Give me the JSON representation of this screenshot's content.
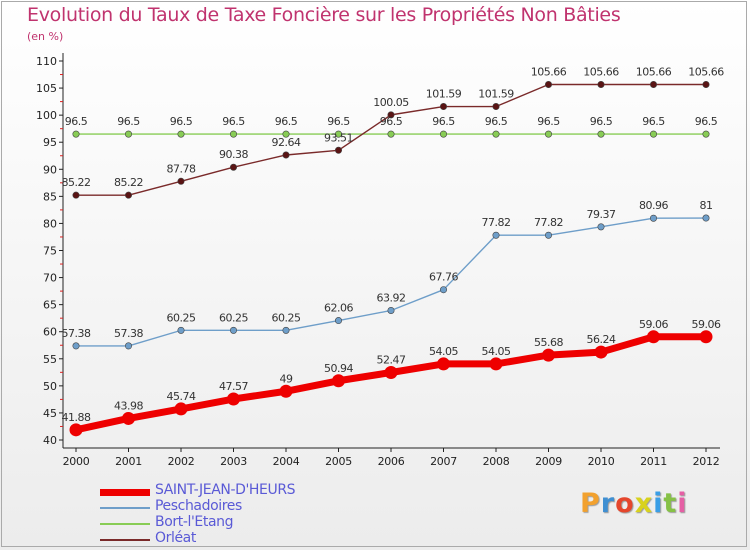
{
  "header": {
    "title": "Evolution du Taux de Taxe Foncière sur les Propriétés Non Bâties",
    "subtitle": "(en %)"
  },
  "logo": {
    "text": "Proxiti",
    "colors": [
      "#f2a12e",
      "#3f8fd2",
      "#e5462c",
      "#d8d21e",
      "#3a9ee6",
      "#86c146",
      "#e55fa4"
    ]
  },
  "chart_data": {
    "type": "line",
    "categories": [
      "2000",
      "2001",
      "2002",
      "2003",
      "2004",
      "2005",
      "2006",
      "2007",
      "2008",
      "2009",
      "2010",
      "2011",
      "2012"
    ],
    "ylim": [
      40,
      110
    ],
    "yticks": [
      40,
      45,
      50,
      55,
      60,
      65,
      70,
      75,
      80,
      85,
      90,
      95,
      100,
      105,
      110
    ],
    "grid": false,
    "legend_position": "bottom-left",
    "series": [
      {
        "name": "SAINT-JEAN-D'HEURS",
        "color": "#ee0000",
        "values": [
          41.88,
          43.98,
          45.74,
          47.57,
          49,
          50.94,
          52.47,
          54.05,
          54.05,
          55.68,
          56.24,
          59.06,
          59.06
        ],
        "labels": [
          "41.88",
          "43.98",
          "45.74",
          "47.57",
          "49",
          "50.94",
          "52.47",
          "54.05",
          "54.05",
          "55.68",
          "56.24",
          "59.06",
          "59.06"
        ]
      },
      {
        "name": "Peschadoires",
        "color": "#6e9ec9",
        "values": [
          57.38,
          57.38,
          60.25,
          60.25,
          60.25,
          62.06,
          63.92,
          67.76,
          77.82,
          77.82,
          79.37,
          80.96,
          81
        ],
        "labels": [
          "57.38",
          "57.38",
          "60.25",
          "60.25",
          "60.25",
          "62.06",
          "63.92",
          "67.76",
          "77.82",
          "77.82",
          "79.37",
          "80.96",
          "81"
        ]
      },
      {
        "name": "Bort-l'Etang",
        "color": "#88cc55",
        "values": [
          96.5,
          96.5,
          96.5,
          96.5,
          96.5,
          96.5,
          96.5,
          96.5,
          96.5,
          96.5,
          96.5,
          96.5,
          96.5
        ],
        "labels": [
          "96.5",
          "96.5",
          "96.5",
          "96.5",
          "96.5",
          "96.5",
          "96.5",
          "96.5",
          "96.5",
          "96.5",
          "96.5",
          "96.5",
          "96.5"
        ]
      },
      {
        "name": "Orléat",
        "color": "#7a2a2a",
        "values": [
          85.22,
          85.22,
          87.78,
          90.38,
          92.64,
          93.51,
          100.05,
          101.59,
          101.59,
          105.66,
          105.66,
          105.66,
          105.66
        ],
        "labels": [
          "85.22",
          "85.22",
          "87.78",
          "90.38",
          "92.64",
          "93.51",
          "100.05",
          "101.59",
          "101.59",
          "105.66",
          "105.66",
          "105.66",
          "105.66"
        ]
      }
    ]
  }
}
